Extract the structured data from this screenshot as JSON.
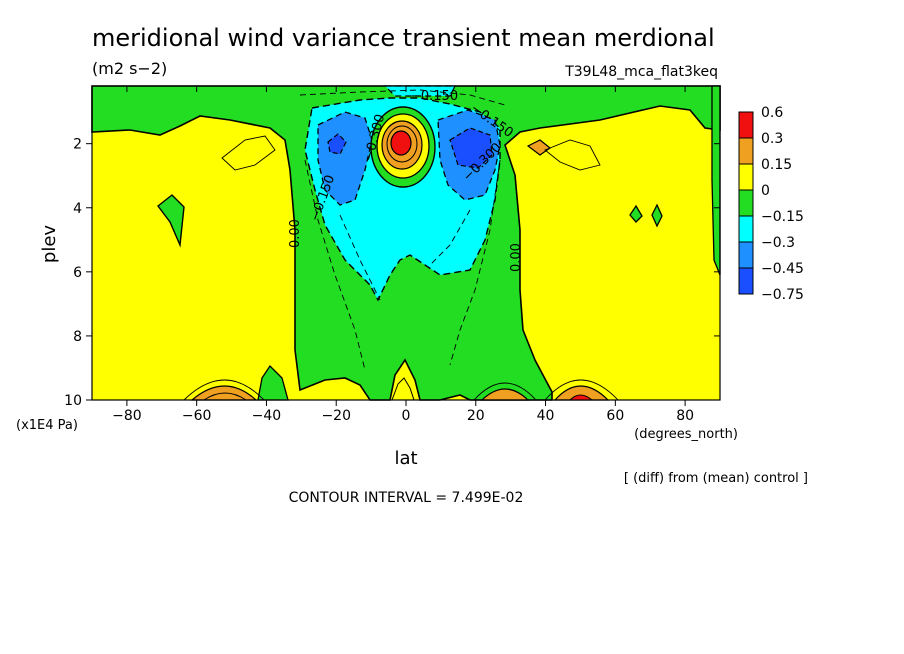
{
  "title": "meridional wind variance transient mean merdional",
  "units": "(m2 s−2)",
  "experiment": "T39L48_mca_flat3keq",
  "xlabel": "lat",
  "x_units": "(degrees_north)",
  "ylabel": "plev",
  "y_units": "(x1E4 Pa)",
  "diff_note": "[ (diff) from (mean) control ]",
  "contour_interval": "CONTOUR INTERVAL = 7.499E-02",
  "colors": {
    "red": "#f01010",
    "orange": "#f0a020",
    "yellow": "#ffff00",
    "green": "#22dd22",
    "cyan": "#00ffff",
    "blue": "#1e90ff",
    "darkblue": "#1a4fff"
  },
  "chart_data": {
    "type": "heatmap",
    "title": "meridional wind variance transient mean merdional",
    "xlabel": "lat",
    "ylabel": "plev",
    "xlim": [
      -90,
      90
    ],
    "ylim": [
      10,
      0.2
    ],
    "x_ticks": [
      -80,
      -60,
      -40,
      -20,
      0,
      20,
      40,
      60,
      80
    ],
    "x_tick_labels": [
      "−80",
      "−60",
      "−40",
      "−20",
      "0",
      "20",
      "40",
      "60",
      "80"
    ],
    "y_ticks": [
      2,
      4,
      6,
      8,
      10
    ],
    "y_tick_labels": [
      "2",
      "4",
      "6",
      "8",
      "10"
    ],
    "legend": {
      "position": "right",
      "labels": [
        "0.6",
        "0.3",
        "0.15",
        "0",
        "−0.15",
        "−0.3",
        "−0.45",
        "−0.75"
      ],
      "colors": [
        "#f01010",
        "#f0a020",
        "#ffff00",
        "#22dd22",
        "#00ffff",
        "#1e90ff",
        "#1a4fff"
      ]
    },
    "contour_labels": [
      {
        "text": "0.00",
        "lat": -30,
        "plev": 4.7
      },
      {
        "text": "−0.150",
        "lat": -24,
        "plev": 4.1
      },
      {
        "text": "−0.300",
        "lat": -9,
        "plev": 1.8
      },
      {
        "text": "−0.150",
        "lat": 9,
        "plev": 0.4
      },
      {
        "text": "−0.150",
        "lat": 22,
        "plev": 1.1
      },
      {
        "text": "−0.300",
        "lat": 21,
        "plev": 2.3
      },
      {
        "text": "0.00",
        "lat": 32,
        "plev": 5.3
      }
    ],
    "features": [
      {
        "name": "positive maximum",
        "lat": -1,
        "plev": 2.0,
        "value": 0.6
      },
      {
        "name": "negative minimum west",
        "lat": -20,
        "plev": 2.1,
        "value": -0.45
      },
      {
        "name": "negative minimum east",
        "lat": 18,
        "plev": 2.1,
        "value": -0.6
      }
    ],
    "grid": false
  }
}
